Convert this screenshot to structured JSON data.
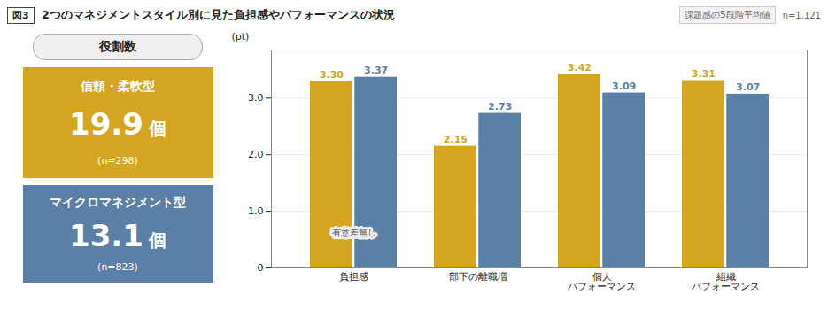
{
  "chart_data": [
    {
      "type": "stat",
      "title": "役割数",
      "categories": [
        "信頼・柔軟型",
        "マイクロマネジメント型"
      ],
      "values": [
        19.9,
        13.1
      ],
      "unit": "個",
      "annotations": [
        "(n=298)",
        "(n=823)"
      ],
      "colors": [
        "#D4A520",
        "#5B80A8"
      ]
    },
    {
      "type": "bar",
      "title": "2つのマネジメントスタイル別に見た負担感やパフォーマンスの状況",
      "subtitle": "課題感の5段階平均値",
      "annotations": [
        {
          "text": "図3"
        },
        {
          "text": "n=1,121"
        },
        {
          "text": "有意差無し",
          "category": "負担感",
          "y": 0.62
        }
      ],
      "categories": [
        "負担感",
        "部下の離職増",
        "個人\nパフォーマンス",
        "組織\nパフォーマンス"
      ],
      "series": [
        {
          "color": "#D4A520",
          "values": [
            3.3,
            2.15,
            3.42,
            3.31
          ],
          "value_labels": [
            "3.30",
            "2.15",
            "3.42",
            "3.31"
          ]
        },
        {
          "color": "#5B80A8",
          "values": [
            3.37,
            2.73,
            3.09,
            3.07
          ],
          "value_labels": [
            "3.37",
            "2.73",
            "3.09",
            "3.07"
          ]
        }
      ],
      "ylabel": "(pt)",
      "ylim": [
        0,
        3.85
      ],
      "yticks": [
        0,
        {
          "value": 1,
          "label": "1.0"
        },
        {
          "value": 2,
          "label": "2.0"
        },
        {
          "value": 3,
          "label": "3.0"
        }
      ],
      "grid": true,
      "data_labels": true
    }
  ]
}
